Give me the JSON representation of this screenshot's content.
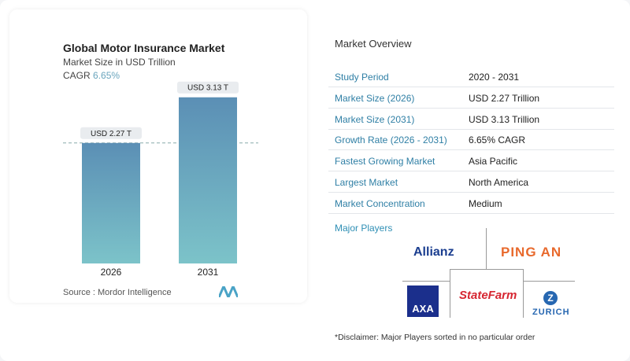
{
  "chart_data": {
    "type": "bar",
    "title": "Global Motor Insurance Market",
    "subtitle": "Market Size in USD Trillion",
    "cagr_label": "CAGR",
    "cagr_value": "6.65%",
    "categories": [
      "2026",
      "2031"
    ],
    "values": [
      2.27,
      3.13
    ],
    "data_labels": [
      "USD 2.27 T",
      "USD 3.13 T"
    ],
    "ylim": [
      0,
      3.6
    ],
    "bar_color": "#5f97b8",
    "reference_line": "dashed at 2026 value",
    "source": "Source :  Mordor Intelligence"
  },
  "overview": {
    "title": "Market Overview",
    "rows": [
      {
        "label": "Study Period",
        "value": "2020 - 2031"
      },
      {
        "label": "Market Size (2026)",
        "value": "USD 2.27 Trillion"
      },
      {
        "label": "Market Size (2031)",
        "value": "USD 3.13 Trillion"
      },
      {
        "label": "Growth Rate (2026 - 2031)",
        "value": "6.65% CAGR"
      },
      {
        "label": "Fastest Growing Market",
        "value": "Asia Pacific"
      },
      {
        "label": "Largest Market",
        "value": "North America"
      },
      {
        "label": "Market Concentration",
        "value": "Medium"
      }
    ]
  },
  "players": {
    "title": "Major Players",
    "logos": [
      "Allianz",
      "PING AN",
      "AXA",
      "StateFarm",
      "ZURICH"
    ],
    "disclaimer": "*Disclaimer: Major Players sorted in no particular order"
  }
}
